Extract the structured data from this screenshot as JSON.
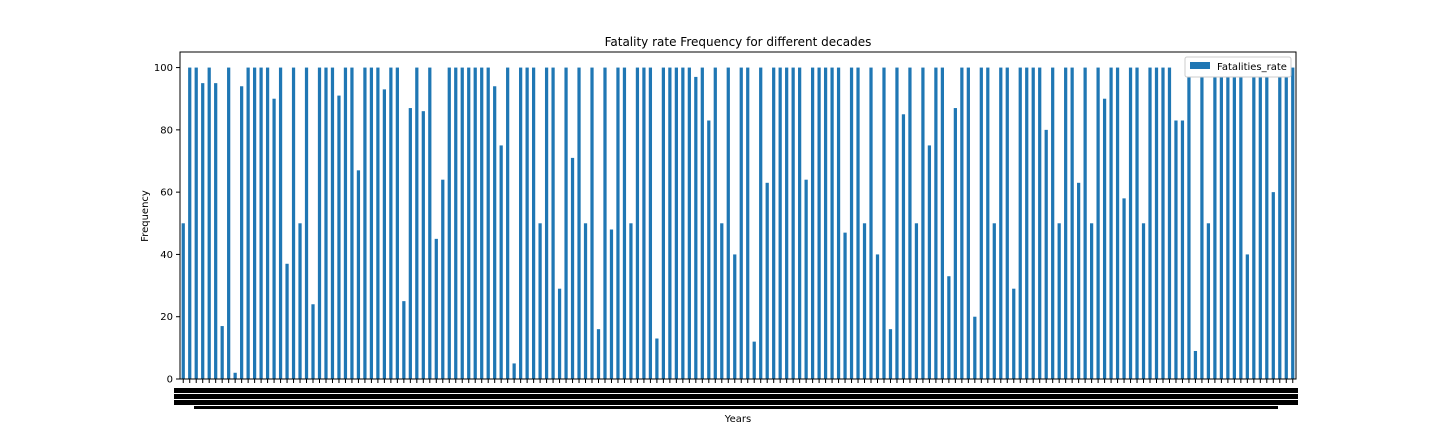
{
  "chart_data": {
    "type": "bar",
    "title": "Fatality rate Frequency for different decades",
    "xlabel": "Years",
    "ylabel": "Frequency",
    "ylim": [
      0,
      105
    ],
    "yticks": [
      0,
      20,
      40,
      60,
      80,
      100
    ],
    "legend_position": "top-right",
    "grid": false,
    "series": [
      {
        "name": "Fatalities_rate",
        "color": "#1f77b4",
        "values": [
          50,
          100,
          100,
          95,
          100,
          95,
          17,
          100,
          2,
          94,
          100,
          100,
          100,
          100,
          90,
          100,
          37,
          100,
          50,
          100,
          24,
          100,
          100,
          100,
          91,
          100,
          100,
          67,
          100,
          100,
          100,
          93,
          100,
          100,
          25,
          87,
          100,
          86,
          100,
          45,
          64,
          100,
          100,
          100,
          100,
          100,
          100,
          100,
          94,
          75,
          100,
          5,
          100,
          100,
          100,
          50,
          100,
          100,
          29,
          100,
          71,
          100,
          50,
          100,
          16,
          100,
          48,
          100,
          100,
          50,
          100,
          100,
          100,
          13,
          100,
          100,
          100,
          100,
          100,
          97,
          100,
          83,
          100,
          50,
          100,
          40,
          100,
          100,
          12,
          100,
          63,
          100,
          100,
          100,
          100,
          100,
          64,
          100,
          100,
          100,
          100,
          100,
          47,
          100,
          100,
          50,
          100,
          40,
          100,
          16,
          100,
          85,
          100,
          50,
          100,
          75,
          100,
          100,
          33,
          87,
          100,
          100,
          20,
          100,
          100,
          50,
          100,
          100,
          29,
          100,
          100,
          100,
          100,
          80,
          100,
          50,
          100,
          100,
          63,
          100,
          50,
          100,
          90,
          100,
          100,
          58,
          100,
          100,
          50,
          100,
          100,
          100,
          100,
          83,
          83,
          100,
          9,
          100,
          50,
          100,
          100,
          100,
          100,
          100,
          40,
          100,
          100,
          100,
          60,
          100,
          100,
          100
        ],
        "_note_unused": ""
      }
    ]
  }
}
